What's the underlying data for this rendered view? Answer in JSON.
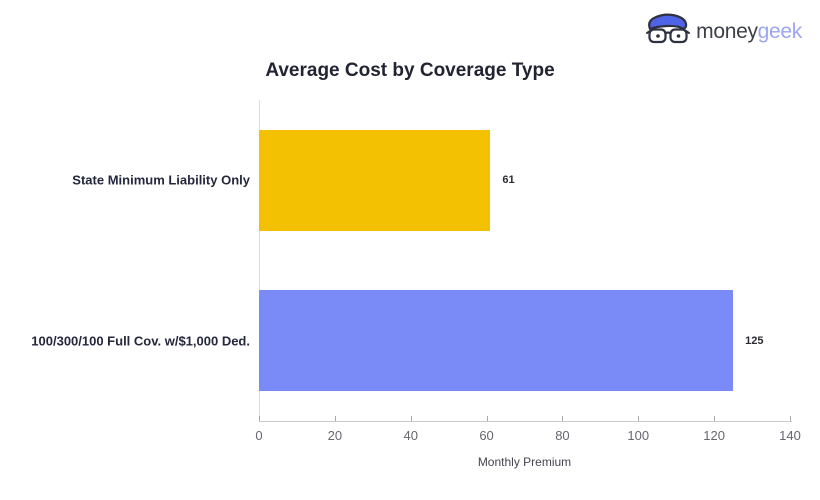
{
  "logo": {
    "text_primary": "money",
    "text_secondary": "geek",
    "icon": "geek-face-icon",
    "icon_hair_color": "#4F63E6",
    "icon_outline_color": "#2E3140",
    "text_primary_color": "#3E4049",
    "text_secondary_color": "#9AA6EF"
  },
  "chart_data": {
    "type": "bar",
    "orientation": "horizontal",
    "title": "Average Cost by Coverage Type",
    "categories": [
      "State Minimum Liability Only",
      "100/300/100 Full Cov. w/$1,000 Ded."
    ],
    "values": [
      61,
      125
    ],
    "data_labels": [
      "61",
      "125"
    ],
    "bar_colors": [
      "#F3C101",
      "#7A8BF7"
    ],
    "xlabel": "Monthly Premium",
    "ylabel": "",
    "xlim": [
      0,
      140
    ],
    "xticks": [
      0,
      20,
      40,
      60,
      80,
      100,
      120,
      140
    ],
    "grid": false,
    "legend": "none",
    "background_color": "#FFFFFF"
  }
}
